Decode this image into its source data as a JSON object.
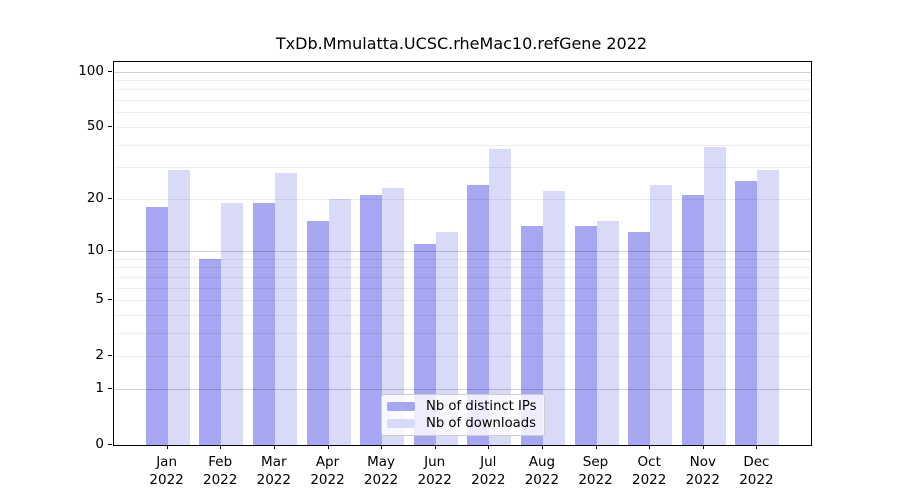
{
  "chart_data": {
    "type": "bar",
    "title": "TxDb.Mmulatta.UCSC.rheMac10.refGene 2022",
    "categories": [
      "Jan",
      "Feb",
      "Mar",
      "Apr",
      "May",
      "Jun",
      "Jul",
      "Aug",
      "Sep",
      "Oct",
      "Nov",
      "Dec"
    ],
    "category_year": "2022",
    "series": [
      {
        "name": "Nb of distinct IPs",
        "color": "#a6a6f2",
        "values": [
          18,
          9,
          19,
          15,
          21,
          11,
          24,
          14,
          14,
          13,
          21,
          25
        ]
      },
      {
        "name": "Nb of downloads",
        "color": "#d9d9f8",
        "values": [
          29,
          19,
          28,
          20,
          23,
          13,
          38,
          22,
          15,
          24,
          39,
          29
        ]
      }
    ],
    "y_axis": {
      "scale": "log10(value+1)",
      "tick_values": [
        0,
        1,
        2,
        5,
        10,
        20,
        50,
        100
      ],
      "grid_values": [
        1,
        2,
        3,
        4,
        5,
        6,
        7,
        8,
        9,
        10,
        20,
        30,
        40,
        50,
        60,
        70,
        80,
        90,
        100
      ],
      "major_grid_values": [
        1,
        10,
        100
      ],
      "ylim": [
        0,
        113
      ]
    },
    "xlabel": "",
    "ylabel": "",
    "grid": "on",
    "legend_position": "bottom-center"
  }
}
